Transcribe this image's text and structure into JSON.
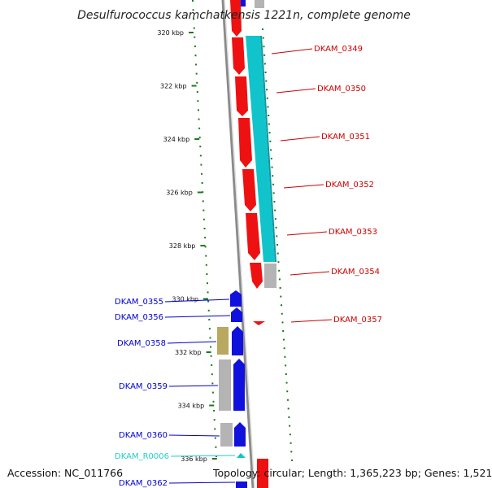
{
  "title": "Desulfurococcus kamchatkensis 1221n, complete genome",
  "footer": {
    "accession": "Accession: NC_011766",
    "summary": "Topology: circular; Length: 1,365,223 bp; Genes: 1,521"
  },
  "colors": {
    "backbone": "#8a8a8a",
    "tick": "#1a7a1a",
    "forward_cds": "#ee1111",
    "reverse_cds": "#1111dd",
    "cyan_feature": "#11c4cc",
    "grey_feature": "#b4b4b4",
    "olive_feature": "#b8a860",
    "right_label": "#cc0000",
    "left_label": "#0000cc",
    "rna_label": "#22cccc"
  },
  "axis": {
    "unit": "kbp",
    "ticks": [
      "320 kbp",
      "322 kbp",
      "324 kbp",
      "326 kbp",
      "328 kbp",
      "330 kbp",
      "332 kbp",
      "334 kbp",
      "336 kbp"
    ]
  },
  "right_labels": [
    "DKAM_0349",
    "DKAM_0350",
    "DKAM_0351",
    "DKAM_0352",
    "DKAM_0353",
    "DKAM_0354",
    "DKAM_0357"
  ],
  "left_labels": [
    "DKAM_0355",
    "DKAM_0356",
    "DKAM_0358",
    "DKAM_0359",
    "DKAM_0360",
    "DKAM_R0006",
    "DKAM_0362"
  ]
}
